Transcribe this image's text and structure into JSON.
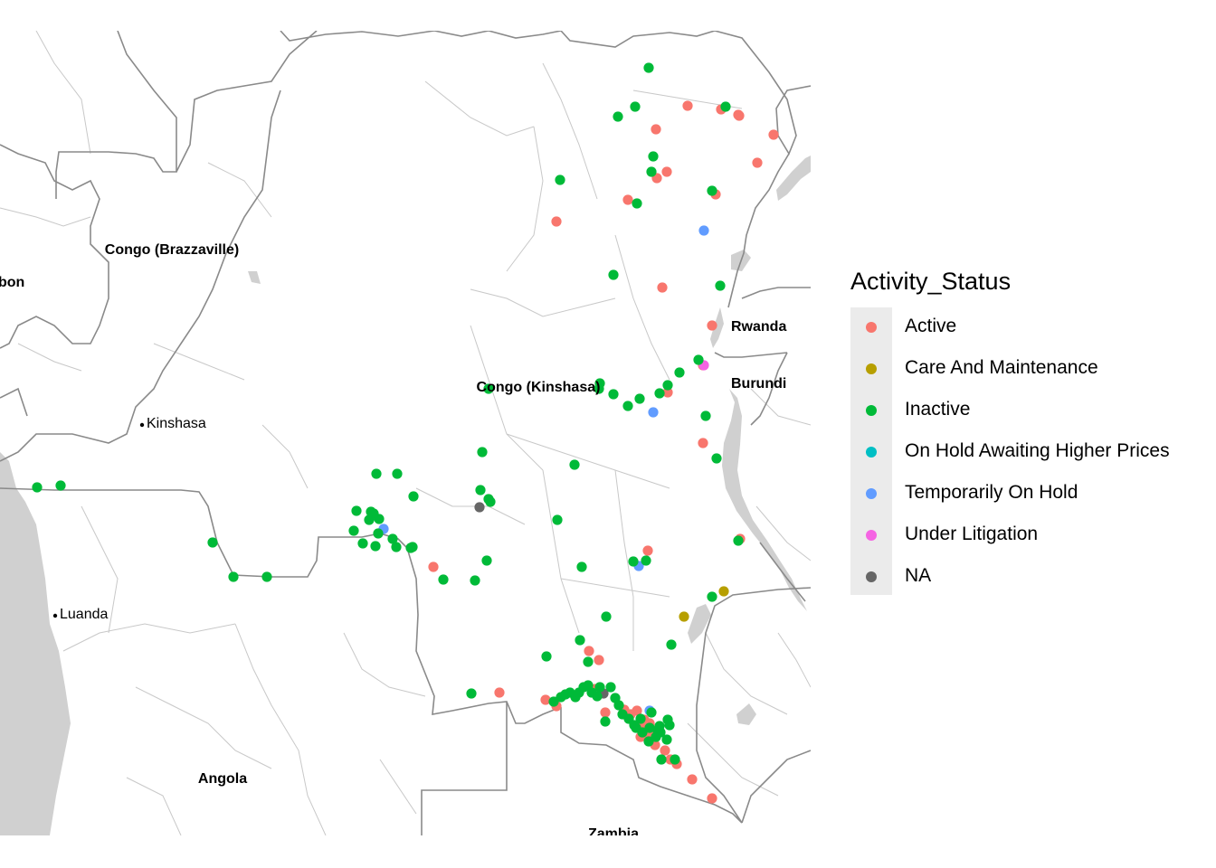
{
  "legend": {
    "title": "Activity_Status",
    "items": [
      {
        "label": "Active",
        "color": "#F8766D"
      },
      {
        "label": "Care And Maintenance",
        "color": "#B79F00"
      },
      {
        "label": "Inactive",
        "color": "#00BA38"
      },
      {
        "label": "On Hold Awaiting Higher Prices",
        "color": "#00BFC4"
      },
      {
        "label": "Temporarily On Hold",
        "color": "#619CFF"
      },
      {
        "label": "Under Litigation",
        "color": "#F564E3"
      },
      {
        "label": "NA",
        "color": "#666666"
      }
    ]
  },
  "map_labels": {
    "countries": [
      "Congo (Brazzaville)",
      "bon",
      "Rwanda",
      "Burundi",
      "Congo (Kinshasa)",
      "Angola",
      "Zambia"
    ],
    "cities": [
      "Kinshasa",
      "Luanda"
    ]
  },
  "colors": {
    "water": "#d0d0d0",
    "country_border": "#8a8a8a",
    "province_border": "#c8c8c8"
  }
}
